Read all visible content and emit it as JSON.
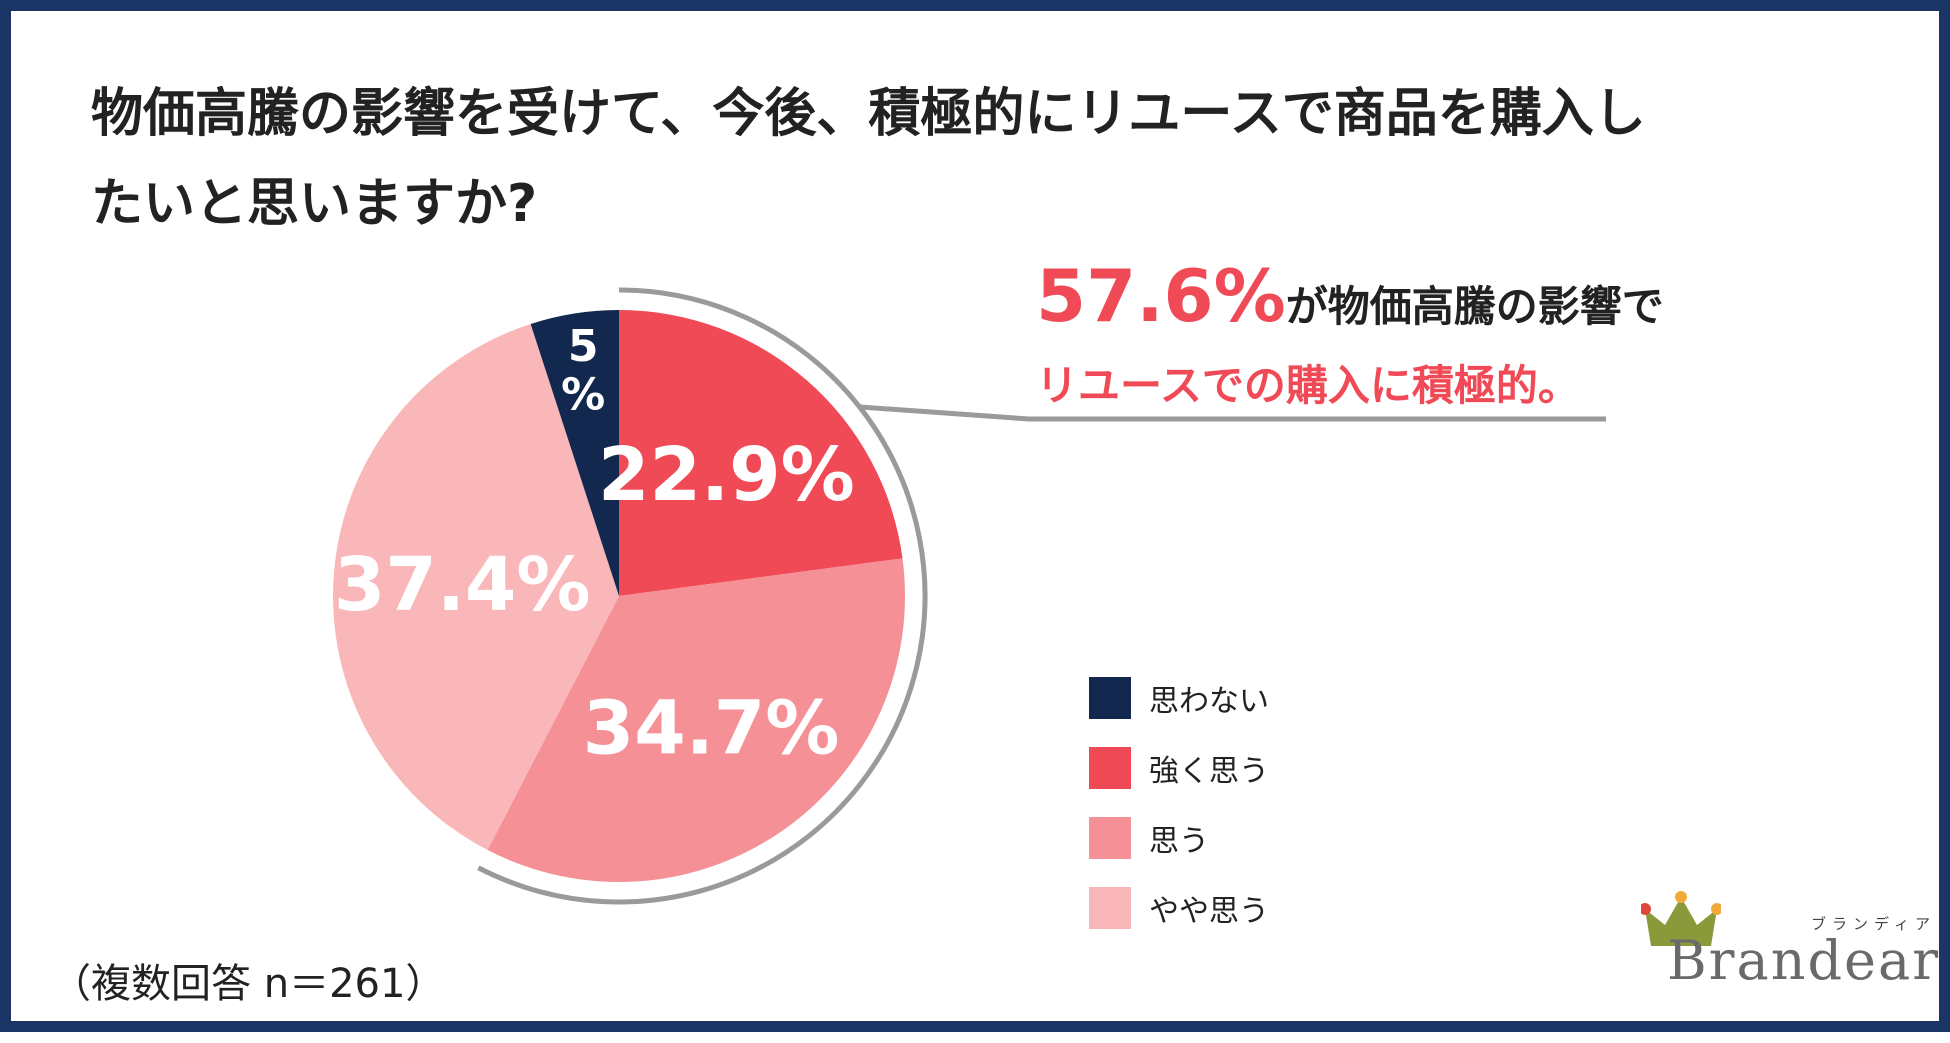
{
  "title": {
    "line1": "物価高騰の影響を受けて、今後、積極的にリユースで商品を購入し",
    "line2": "たいと思いますか?"
  },
  "callout": {
    "highlight_value": "57.6%",
    "line1_rest": "が物価高騰の影響で",
    "line2": "リユースでの購入に積極的。"
  },
  "note": "（複数回答 n＝261）",
  "logo": {
    "wordmark": "Brandear",
    "kana": "ブランディア"
  },
  "colors": {
    "navy": "#13284f",
    "strong_red": "#f04a57",
    "mid_pink": "#f59196",
    "light_pink": "#f9b7b9",
    "bracket_gray": "#9a9a9a",
    "frame": "#1b3566"
  },
  "chart_data": {
    "type": "pie",
    "title": "物価高騰の影響を受けて、今後、積極的にリユースで商品を購入したいと思いますか?",
    "series": [
      {
        "name": "強く思う",
        "value": 22.9,
        "label": "22.9%",
        "color": "#f04a57"
      },
      {
        "name": "思う",
        "value": 34.7,
        "label": "34.7%",
        "color": "#f59196"
      },
      {
        "name": "やや思う",
        "value": 37.4,
        "label": "37.4%",
        "color": "#f9b7b9"
      },
      {
        "name": "思わない",
        "value": 5,
        "label": "5%",
        "color": "#13284f"
      }
    ],
    "legend": {
      "placement": "right",
      "entries": [
        {
          "name": "思わない",
          "color": "#13284f"
        },
        {
          "name": "強く思う",
          "color": "#f04a57"
        },
        {
          "name": "思う",
          "color": "#f59196"
        },
        {
          "name": "やや思う",
          "color": "#f9b7b9"
        }
      ]
    },
    "start": "12 o'clock",
    "direction": "clockwise"
  }
}
